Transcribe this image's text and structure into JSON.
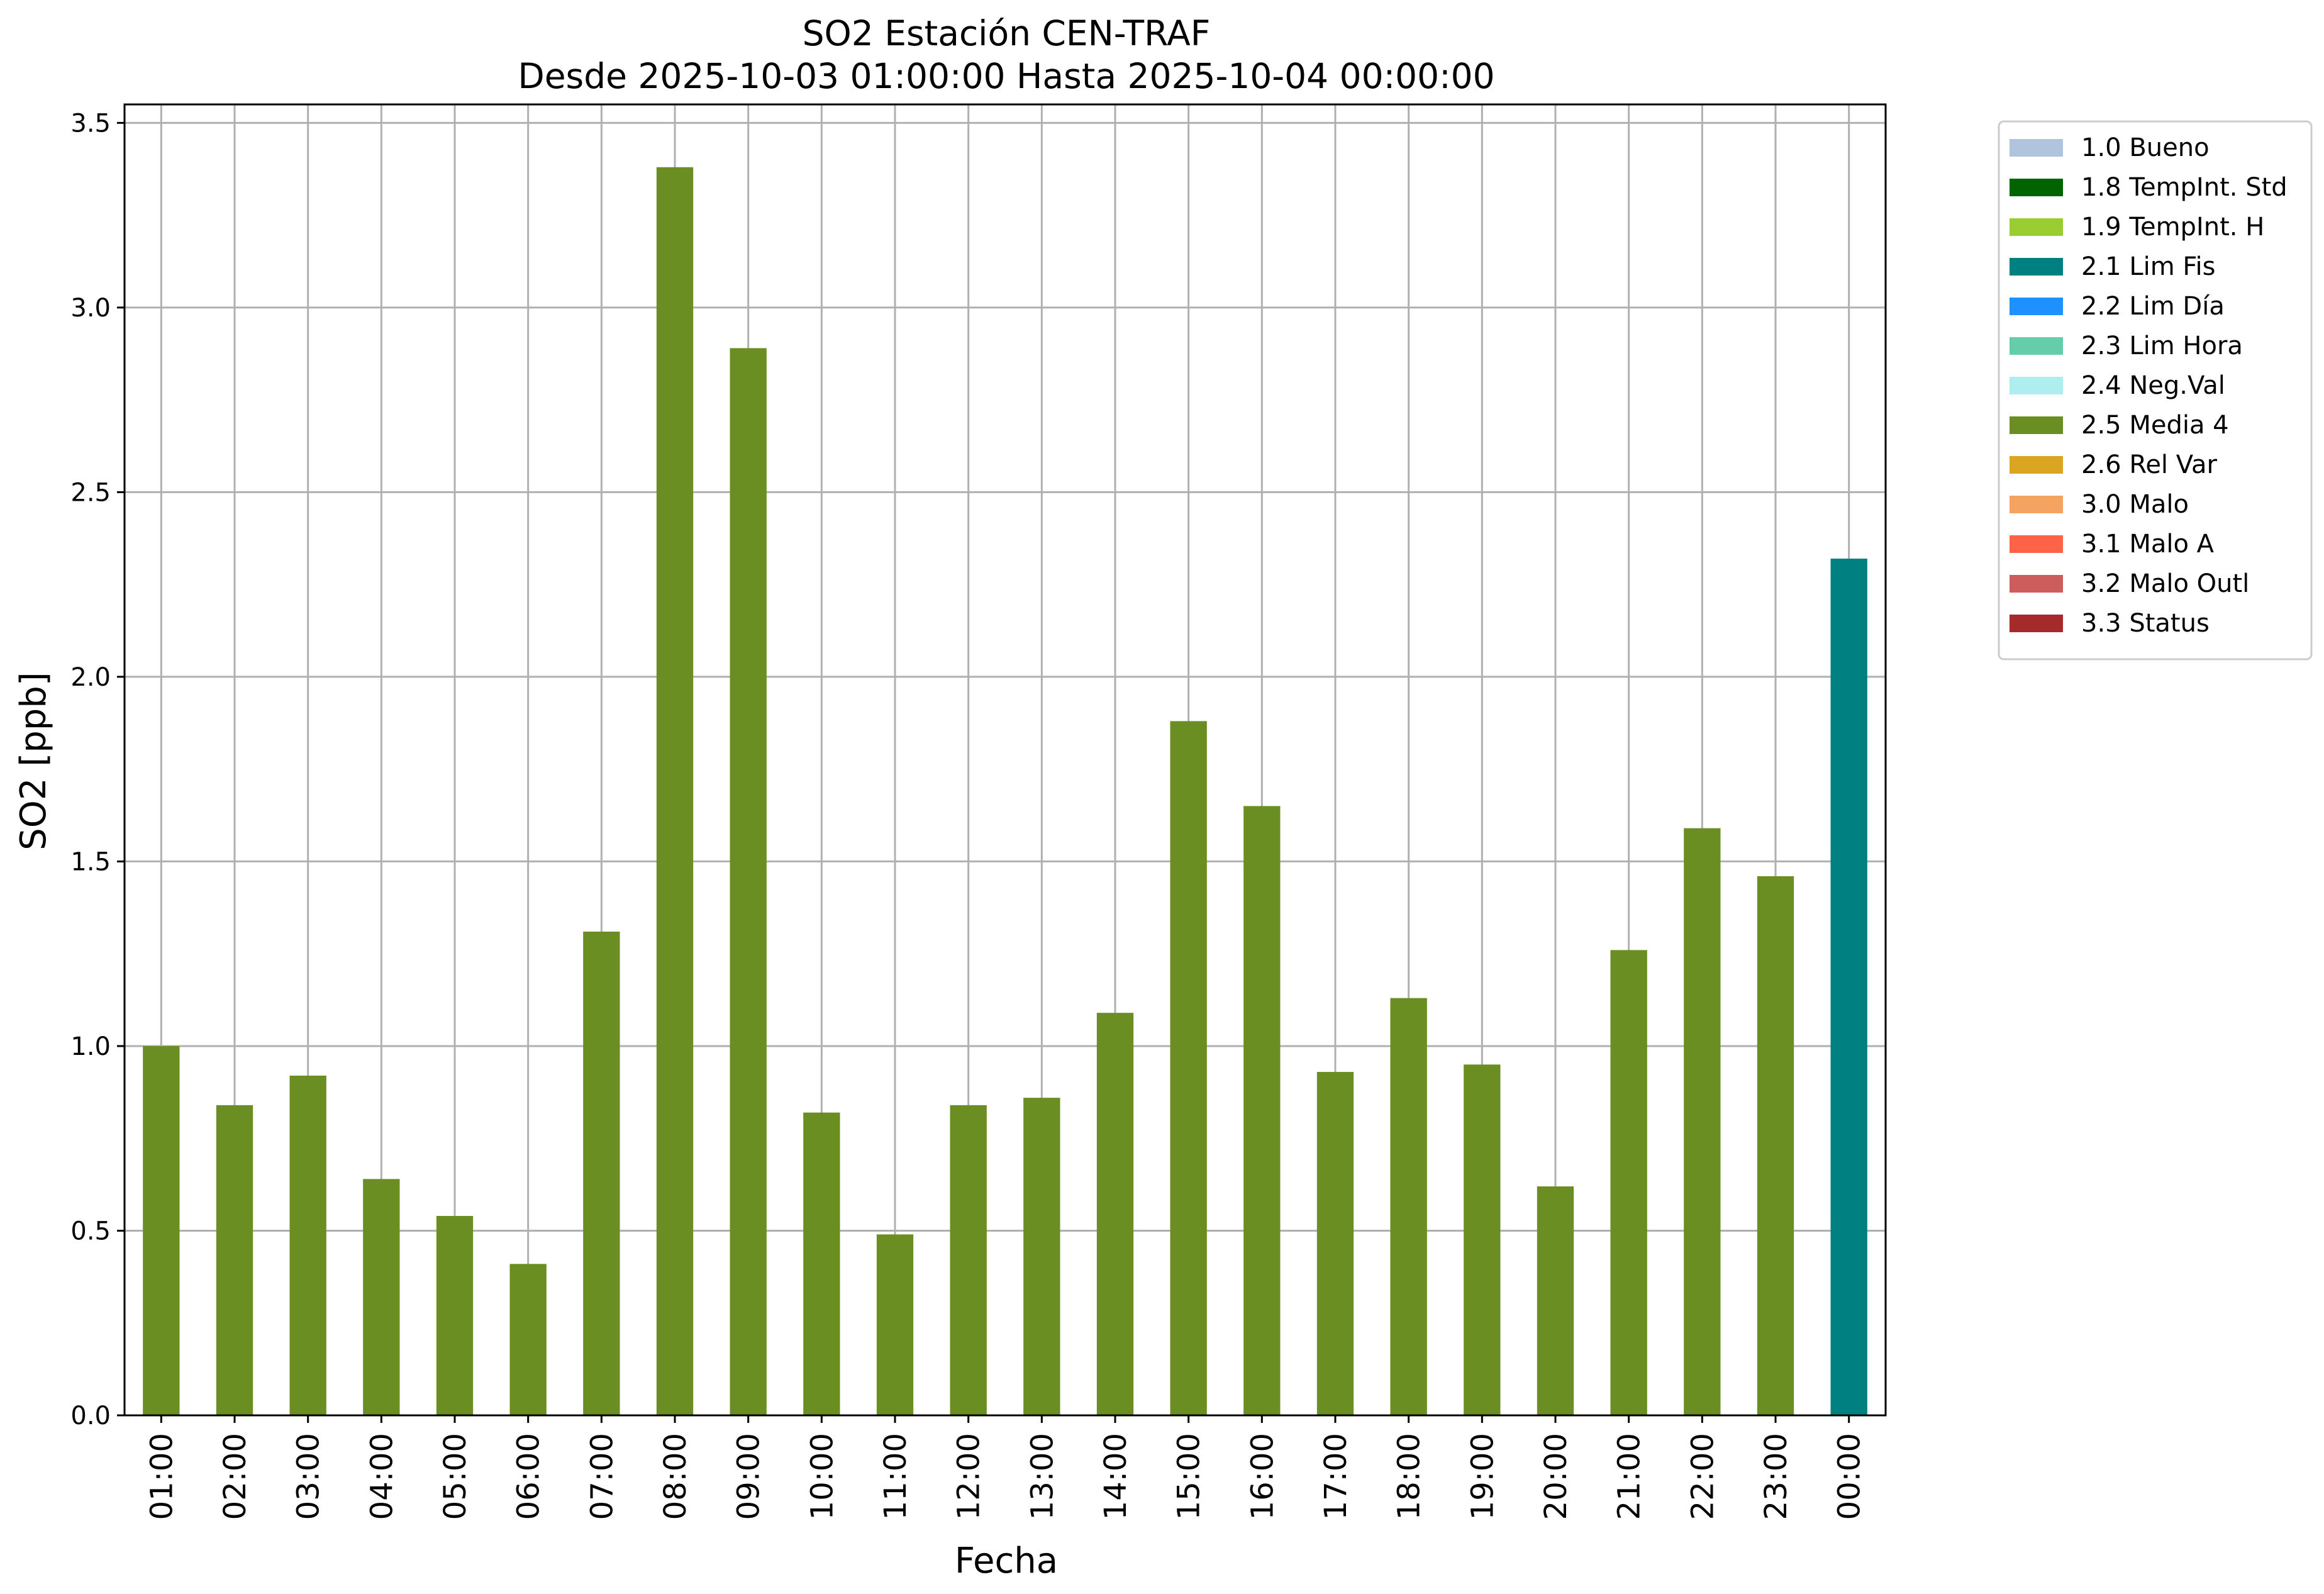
{
  "chart_data": {
    "type": "bar",
    "title": "SO2 Estación CEN-TRAF",
    "subtitle": "Desde 2025-10-03 01:00:00 Hasta 2025-10-04 00:00:00",
    "xlabel": "Fecha",
    "ylabel": "SO2 [ppb]",
    "ylim": [
      0,
      3.55
    ],
    "yticks": [
      "0.0",
      "0.5",
      "1.0",
      "1.5",
      "2.0",
      "2.5",
      "3.0",
      "3.5"
    ],
    "grid": true,
    "legend_position": "outside-right-top",
    "categories": [
      "01:00",
      "02:00",
      "03:00",
      "04:00",
      "05:00",
      "06:00",
      "07:00",
      "08:00",
      "09:00",
      "10:00",
      "11:00",
      "12:00",
      "13:00",
      "14:00",
      "15:00",
      "16:00",
      "17:00",
      "18:00",
      "19:00",
      "20:00",
      "21:00",
      "22:00",
      "23:00",
      "00:00"
    ],
    "values": [
      1.0,
      0.84,
      0.92,
      0.64,
      0.54,
      0.41,
      1.31,
      3.38,
      2.89,
      0.82,
      0.49,
      0.84,
      0.86,
      1.09,
      1.88,
      1.65,
      0.93,
      1.13,
      0.95,
      0.62,
      1.26,
      1.59,
      1.46,
      2.32
    ],
    "bar_flags": [
      "2.5",
      "2.5",
      "2.5",
      "2.5",
      "2.5",
      "2.5",
      "2.5",
      "2.5",
      "2.5",
      "2.5",
      "2.5",
      "2.5",
      "2.5",
      "2.5",
      "2.5",
      "2.5",
      "2.5",
      "2.5",
      "2.5",
      "2.5",
      "2.5",
      "2.5",
      "2.5",
      "2.1"
    ],
    "legend": [
      {
        "code": "1.0",
        "label": "1.0 Bueno",
        "color": "#b0c4de"
      },
      {
        "code": "1.8",
        "label": "1.8 TempInt. Std",
        "color": "#006400"
      },
      {
        "code": "1.9",
        "label": "1.9 TempInt. H",
        "color": "#9acd32"
      },
      {
        "code": "2.1",
        "label": "2.1 Lim Fis",
        "color": "#008080"
      },
      {
        "code": "2.2",
        "label": "2.2 Lim Día",
        "color": "#1e90ff"
      },
      {
        "code": "2.3",
        "label": "2.3 Lim Hora",
        "color": "#66cdaa"
      },
      {
        "code": "2.4",
        "label": "2.4 Neg.Val",
        "color": "#afeeee"
      },
      {
        "code": "2.5",
        "label": "2.5 Media 4",
        "color": "#6b8e23"
      },
      {
        "code": "2.6",
        "label": "2.6 Rel Var",
        "color": "#daa520"
      },
      {
        "code": "3.0",
        "label": "3.0 Malo",
        "color": "#f4a460"
      },
      {
        "code": "3.1",
        "label": "3.1 Malo A",
        "color": "#ff6347"
      },
      {
        "code": "3.2",
        "label": "3.2 Malo Outl",
        "color": "#cd5c5c"
      },
      {
        "code": "3.3",
        "label": "3.3 Status",
        "color": "#a52a2a"
      }
    ]
  }
}
